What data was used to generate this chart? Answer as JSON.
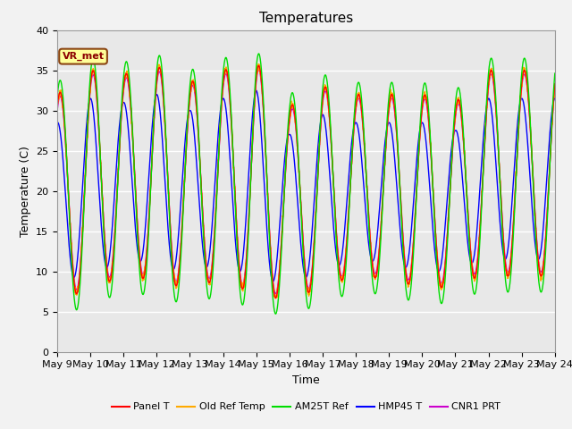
{
  "title": "Temperatures",
  "xlabel": "Time",
  "ylabel": "Temperature (C)",
  "ylim": [
    0,
    40
  ],
  "x_tick_labels": [
    "May 9",
    "May 10",
    "May 11",
    "May 12",
    "May 13",
    "May 14",
    "May 15",
    "May 16",
    "May 17",
    "May 18",
    "May 19",
    "May 20",
    "May 21",
    "May 22",
    "May 23",
    "May 24"
  ],
  "annotation_text": "VR_met",
  "legend_entries": [
    "Panel T",
    "Old Ref Temp",
    "AM25T Ref",
    "HMP45 T",
    "CNR1 PRT"
  ],
  "line_colors": [
    "#ff0000",
    "#ffaa00",
    "#00dd00",
    "#0000ff",
    "#cc00cc"
  ],
  "background_color": "#e8e8e8",
  "fig_color": "#f2f2f2",
  "grid_color": "#ffffff",
  "title_fontsize": 11,
  "label_fontsize": 9,
  "tick_fontsize": 8
}
